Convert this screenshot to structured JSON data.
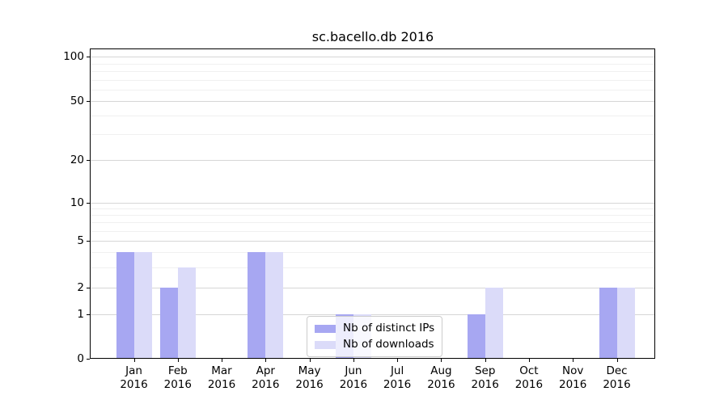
{
  "title": "sc.bacello.db 2016",
  "colors": {
    "distinct_ips": "#a7a7f2",
    "downloads": "#dbdbf9",
    "grid_major": "#d6d6d6",
    "grid_minor": "#f0f0f0",
    "axis": "#000000",
    "background": "#ffffff",
    "legend_border": "#cccccc",
    "text": "#000000"
  },
  "legend": {
    "items": [
      {
        "label": "Nb of distinct IPs",
        "series": "distinct_ips"
      },
      {
        "label": "Nb of downloads",
        "series": "downloads"
      }
    ]
  },
  "y_axis": {
    "tick_labels": [
      "0",
      "1",
      "2",
      "5",
      "10",
      "20",
      "50",
      "100"
    ],
    "tick_values": [
      0,
      1,
      2,
      5,
      10,
      20,
      50,
      100
    ],
    "minor_values": [
      3,
      4,
      6,
      7,
      8,
      9,
      30,
      40,
      60,
      70,
      80,
      90
    ]
  },
  "x_axis": {
    "months": [
      "Jan",
      "Feb",
      "Mar",
      "Apr",
      "May",
      "Jun",
      "Jul",
      "Aug",
      "Sep",
      "Oct",
      "Nov",
      "Dec"
    ],
    "year": "2016"
  },
  "chart_data": {
    "type": "bar",
    "title": "sc.bacello.db 2016",
    "categories": [
      "Jan 2016",
      "Feb 2016",
      "Mar 2016",
      "Apr 2016",
      "May 2016",
      "Jun 2016",
      "Jul 2016",
      "Aug 2016",
      "Sep 2016",
      "Oct 2016",
      "Nov 2016",
      "Dec 2016"
    ],
    "series": [
      {
        "name": "Nb of distinct IPs",
        "color": "#a7a7f2",
        "values": [
          4,
          2,
          0,
          4,
          0,
          1,
          0,
          0,
          1,
          0,
          0,
          2
        ]
      },
      {
        "name": "Nb of downloads",
        "color": "#dbdbf9",
        "values": [
          4,
          3,
          0,
          4,
          0,
          1,
          0,
          0,
          2,
          0,
          0,
          2
        ]
      }
    ],
    "xlabel": "",
    "ylabel": "",
    "yscale": "symlog",
    "yticks": [
      0,
      1,
      2,
      5,
      10,
      20,
      50,
      100
    ],
    "ylim": [
      0,
      115
    ],
    "grid": "horizontal-major-and-minor",
    "legend_position": "lower-center-inside"
  }
}
